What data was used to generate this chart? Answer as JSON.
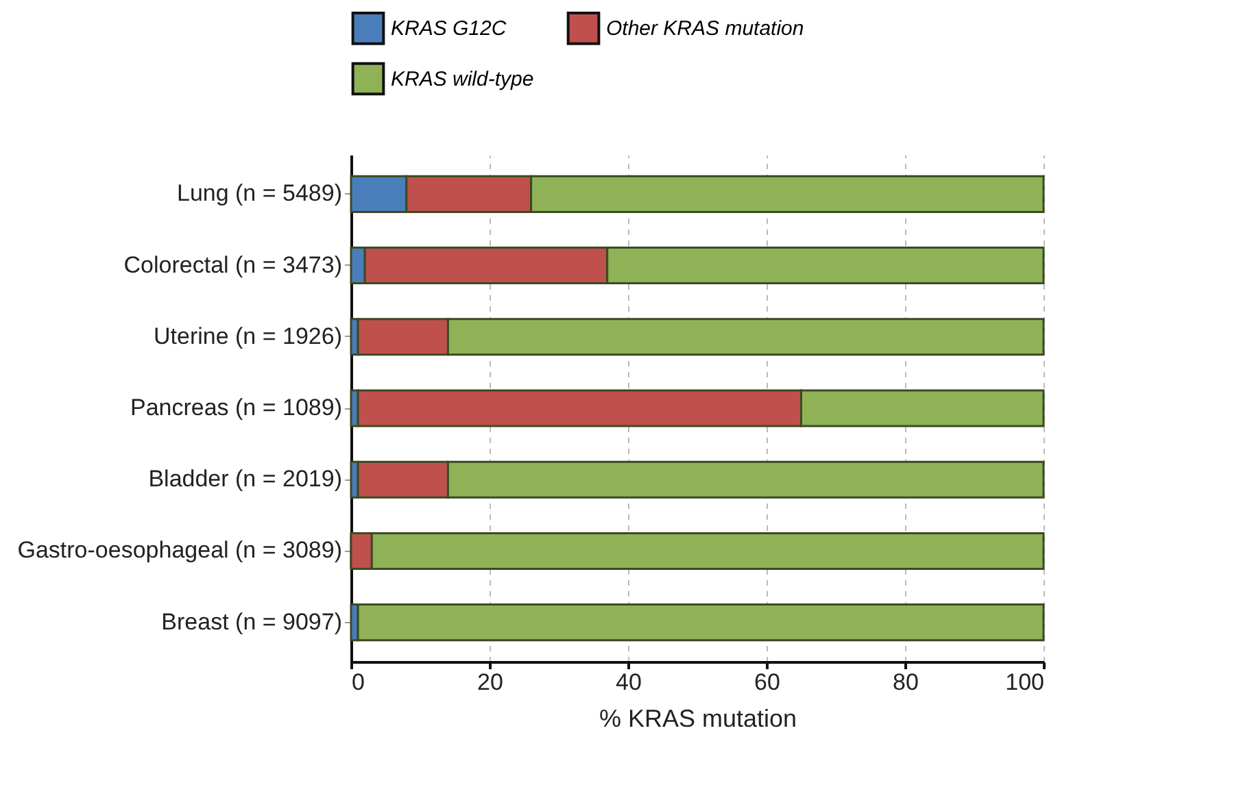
{
  "chart_data": {
    "type": "bar",
    "orientation": "horizontal",
    "stacked": true,
    "categories": [
      "Lung (n = 5489)",
      "Colorectal (n = 3473)",
      "Uterine (n = 1926)",
      "Pancreas (n = 1089)",
      "Bladder (n = 2019)",
      "Gastro-oesophageal (n = 3089)",
      "Breast (n = 9097)"
    ],
    "series": [
      {
        "name": "KRAS G12C",
        "color": "#4a7ebb",
        "values": [
          8,
          2,
          1,
          1,
          1,
          0,
          1
        ]
      },
      {
        "name": "Other KRAS mutation",
        "color": "#c0504d",
        "values": [
          18,
          35,
          13,
          64,
          13,
          3,
          null
        ]
      },
      {
        "name": "KRAS wild-type",
        "color": "#8fb257",
        "values": [
          74,
          63,
          86,
          35,
          86,
          97,
          99
        ]
      }
    ],
    "xlim": [
      0,
      100
    ],
    "xticks": [
      0,
      20,
      40,
      60,
      80,
      100
    ],
    "xlabel": "% KRAS mutation",
    "grid": "x",
    "legend": "top"
  }
}
